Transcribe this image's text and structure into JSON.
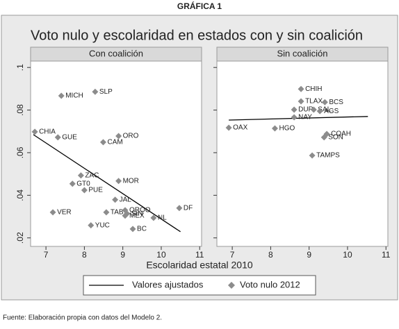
{
  "header": "GRÁFICA 1",
  "source": "Fuente: Elaboración propia con datos del Modelo 2.",
  "chart_data": {
    "type": "scatter",
    "title": "Voto nulo y escolaridad en estados con y sin coalición",
    "xlabel": "Escolaridad estatal 2010",
    "xlim": [
      6.6,
      11.05
    ],
    "xticks": [
      7,
      8,
      9,
      10,
      11
    ],
    "ylim": [
      0.016,
      0.103
    ],
    "yticks": [
      {
        "value": 0.02,
        "label": ".02"
      },
      {
        "value": 0.04,
        "label": ".04"
      },
      {
        "value": 0.06,
        "label": ".06"
      },
      {
        "value": 0.08,
        "label": ".08"
      },
      {
        "value": 0.1,
        "label": ".1"
      }
    ],
    "series": [
      {
        "name": "Valores ajustados",
        "color": "#000000"
      },
      {
        "name": "Voto nulo 2012",
        "color": "#8c8c8c"
      }
    ],
    "panels": [
      {
        "name": "Con coalición",
        "labels": [
          "MICH",
          "SLP",
          "CHIA",
          "GUE",
          "ORO",
          "CAM",
          "ZAC",
          "GT0",
          "MOR",
          "PUE",
          "JAL",
          "DF",
          "VER",
          "TAB",
          "QROO",
          "SIN",
          "MEX",
          "NL",
          "YUC",
          "BC"
        ],
        "x": [
          7.4,
          8.28,
          6.71,
          7.31,
          8.89,
          8.49,
          7.91,
          7.69,
          8.89,
          8.0,
          8.8,
          10.47,
          7.18,
          8.57,
          9.06,
          9.11,
          9.06,
          9.8,
          8.17,
          9.26
        ],
        "values": [
          0.0867,
          0.0886,
          0.0698,
          0.0672,
          0.0678,
          0.0649,
          0.0493,
          0.0454,
          0.0467,
          0.0424,
          0.0379,
          0.034,
          0.032,
          0.032,
          0.033,
          0.0314,
          0.0304,
          0.0294,
          0.0259,
          0.0242
        ],
        "fit_x": [
          6.67,
          10.5
        ],
        "fit_values": [
          0.0685,
          0.0229
        ]
      },
      {
        "name": "Sin coalición",
        "labels": [
          "OAX",
          "HGO",
          "CHIH",
          "TLAX",
          "BCS",
          "DUR",
          "SAL",
          "AGS",
          "NAY",
          "COAH",
          "SON",
          "TAMPS"
        ],
        "x": [
          6.91,
          8.11,
          8.79,
          8.79,
          9.41,
          8.61,
          9.12,
          9.28,
          8.61,
          9.46,
          9.39,
          9.08
        ],
        "values": [
          0.0717,
          0.0714,
          0.0899,
          0.0841,
          0.0837,
          0.0802,
          0.0802,
          0.0795,
          0.0766,
          0.0688,
          0.0672,
          0.0587
        ],
        "fit_x": [
          6.91,
          10.53
        ],
        "fit_values": [
          0.0753,
          0.077
        ]
      }
    ]
  }
}
